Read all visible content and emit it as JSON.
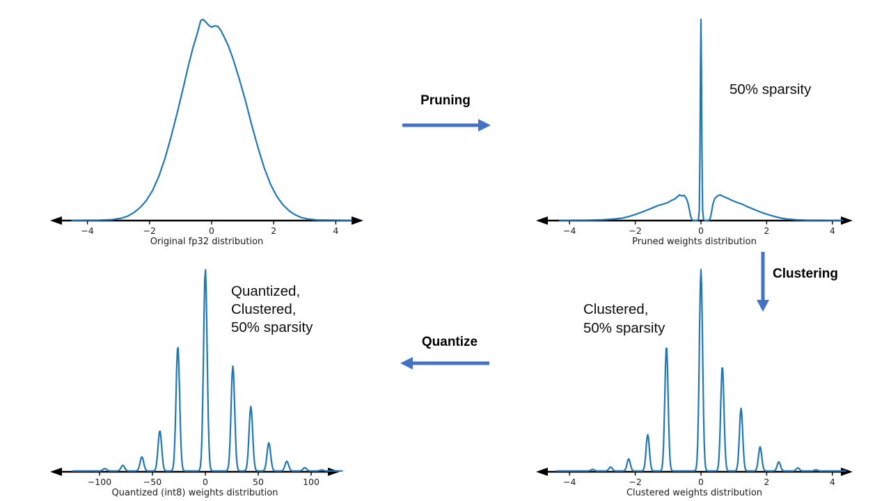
{
  "page": {
    "background": "#ffffff"
  },
  "colors": {
    "curve": "#1f77b4",
    "axis": "#000000",
    "flow_arrow": "#4472c4",
    "text": "#0d0d0d"
  },
  "flow": {
    "pruning_label": "Pruning",
    "clustering_label": "Clustering",
    "quantize_label": "Quantize"
  },
  "chart_data": [
    {
      "id": "original-fp32",
      "type": "line",
      "xlabel": "Original fp32 distribution",
      "x_ticks": [
        -4,
        -2,
        0,
        2,
        4
      ],
      "xlim": [
        -5.3,
        5.3
      ],
      "grid": false,
      "y_axis_visible": false,
      "annotation": [],
      "curve": [
        [
          -4.5,
          0.001
        ],
        [
          -3.6,
          0.002
        ],
        [
          -3.2,
          0.005
        ],
        [
          -2.9,
          0.012
        ],
        [
          -2.7,
          0.022
        ],
        [
          -2.5,
          0.04
        ],
        [
          -2.3,
          0.065
        ],
        [
          -2.1,
          0.1
        ],
        [
          -1.9,
          0.15
        ],
        [
          -1.7,
          0.22
        ],
        [
          -1.5,
          0.31
        ],
        [
          -1.3,
          0.42
        ],
        [
          -1.1,
          0.54
        ],
        [
          -0.9,
          0.67
        ],
        [
          -0.75,
          0.77
        ],
        [
          -0.6,
          0.86
        ],
        [
          -0.5,
          0.91
        ],
        [
          -0.42,
          0.955
        ],
        [
          -0.35,
          0.995
        ],
        [
          -0.28,
          1.0
        ],
        [
          -0.2,
          0.99
        ],
        [
          -0.1,
          0.972
        ],
        [
          0.0,
          0.962
        ],
        [
          0.1,
          0.968
        ],
        [
          0.2,
          0.966
        ],
        [
          0.3,
          0.945
        ],
        [
          0.4,
          0.915
        ],
        [
          0.55,
          0.865
        ],
        [
          0.7,
          0.8
        ],
        [
          0.9,
          0.7
        ],
        [
          1.1,
          0.59
        ],
        [
          1.3,
          0.47
        ],
        [
          1.5,
          0.36
        ],
        [
          1.7,
          0.26
        ],
        [
          1.9,
          0.18
        ],
        [
          2.1,
          0.12
        ],
        [
          2.3,
          0.078
        ],
        [
          2.5,
          0.048
        ],
        [
          2.7,
          0.028
        ],
        [
          2.9,
          0.015
        ],
        [
          3.1,
          0.008
        ],
        [
          3.4,
          0.003
        ],
        [
          4.5,
          0.001
        ]
      ]
    },
    {
      "id": "pruned",
      "type": "line",
      "xlabel": "Pruned weights distribution",
      "x_ticks": [
        -4,
        -2,
        0,
        2,
        4
      ],
      "xlim": [
        -5.0,
        5.0
      ],
      "grid": false,
      "y_axis_visible": false,
      "annotation": [
        "50% sparsity"
      ],
      "curve": [
        [
          -4.3,
          0.001
        ],
        [
          -3.4,
          0.002
        ],
        [
          -3.0,
          0.004
        ],
        [
          -2.7,
          0.007
        ],
        [
          -2.4,
          0.012
        ],
        [
          -2.2,
          0.02
        ],
        [
          -2.0,
          0.03
        ],
        [
          -1.8,
          0.042
        ],
        [
          -1.6,
          0.055
        ],
        [
          -1.45,
          0.065
        ],
        [
          -1.3,
          0.075
        ],
        [
          -1.15,
          0.082
        ],
        [
          -1.0,
          0.09
        ],
        [
          -0.9,
          0.1
        ],
        [
          -0.8,
          0.107
        ],
        [
          -0.72,
          0.118
        ],
        [
          -0.65,
          0.128
        ],
        [
          -0.58,
          0.122
        ],
        [
          -0.52,
          0.126
        ],
        [
          -0.45,
          0.112
        ],
        [
          -0.4,
          0.09
        ],
        [
          -0.36,
          0.06
        ],
        [
          -0.32,
          0.025
        ],
        [
          -0.28,
          0.006
        ],
        [
          -0.24,
          0.001
        ],
        [
          -0.18,
          0
        ],
        [
          -0.12,
          0
        ],
        [
          -0.08,
          0.004
        ],
        [
          -0.05,
          0.05
        ],
        [
          -0.03,
          0.35
        ],
        [
          -0.015,
          0.75
        ],
        [
          0,
          1.0
        ],
        [
          0.015,
          0.75
        ],
        [
          0.03,
          0.35
        ],
        [
          0.05,
          0.05
        ],
        [
          0.08,
          0.004
        ],
        [
          0.12,
          0
        ],
        [
          0.18,
          0
        ],
        [
          0.24,
          0.002
        ],
        [
          0.28,
          0.01
        ],
        [
          0.32,
          0.04
        ],
        [
          0.36,
          0.08
        ],
        [
          0.42,
          0.11
        ],
        [
          0.5,
          0.122
        ],
        [
          0.58,
          0.128
        ],
        [
          0.65,
          0.122
        ],
        [
          0.75,
          0.115
        ],
        [
          0.85,
          0.108
        ],
        [
          0.95,
          0.1
        ],
        [
          1.1,
          0.09
        ],
        [
          1.25,
          0.082
        ],
        [
          1.4,
          0.07
        ],
        [
          1.55,
          0.06
        ],
        [
          1.7,
          0.05
        ],
        [
          1.85,
          0.04
        ],
        [
          2.0,
          0.032
        ],
        [
          2.2,
          0.022
        ],
        [
          2.4,
          0.014
        ],
        [
          2.6,
          0.008
        ],
        [
          2.9,
          0.004
        ],
        [
          3.2,
          0.002
        ],
        [
          4.3,
          0.001
        ]
      ]
    },
    {
      "id": "quantized-int8",
      "type": "line",
      "xlabel": "Quantized (int8) weights distribution",
      "x_ticks": [
        -100,
        -50,
        0,
        50,
        100
      ],
      "xlim": [
        -130,
        130
      ],
      "grid": false,
      "y_axis_visible": false,
      "annotation": [
        "Quantized,",
        "Clustered,",
        "50% sparsity"
      ],
      "spikes": [
        [
          -95,
          0.012
        ],
        [
          -78,
          0.028
        ],
        [
          -60,
          0.07
        ],
        [
          -43,
          0.2
        ],
        [
          -26,
          0.62
        ],
        [
          0,
          1.0
        ],
        [
          26,
          0.52
        ],
        [
          43,
          0.32
        ],
        [
          60,
          0.14
        ],
        [
          77,
          0.048
        ],
        [
          94,
          0.016
        ],
        [
          110,
          0.005
        ]
      ],
      "spike_sigma": 1.7,
      "baseline": 0.004,
      "sample_range": [
        -125,
        130
      ]
    },
    {
      "id": "clustered",
      "type": "line",
      "xlabel": "Clustered weights distribution",
      "x_ticks": [
        -4,
        -2,
        0,
        2,
        4
      ],
      "xlim": [
        -5.0,
        5.0
      ],
      "grid": false,
      "y_axis_visible": false,
      "annotation": [
        "Clustered,",
        "50% sparsity"
      ],
      "spikes": [
        [
          -3.3,
          0.008
        ],
        [
          -2.75,
          0.02
        ],
        [
          -2.2,
          0.06
        ],
        [
          -1.62,
          0.18
        ],
        [
          -1.05,
          0.62
        ],
        [
          0,
          1.0
        ],
        [
          0.65,
          0.52
        ],
        [
          1.22,
          0.31
        ],
        [
          1.8,
          0.12
        ],
        [
          2.37,
          0.045
        ],
        [
          2.95,
          0.015
        ],
        [
          3.5,
          0.006
        ]
      ],
      "spike_sigma": 0.05,
      "baseline": 0.004,
      "sample_range": [
        -4.4,
        4.4
      ]
    }
  ]
}
